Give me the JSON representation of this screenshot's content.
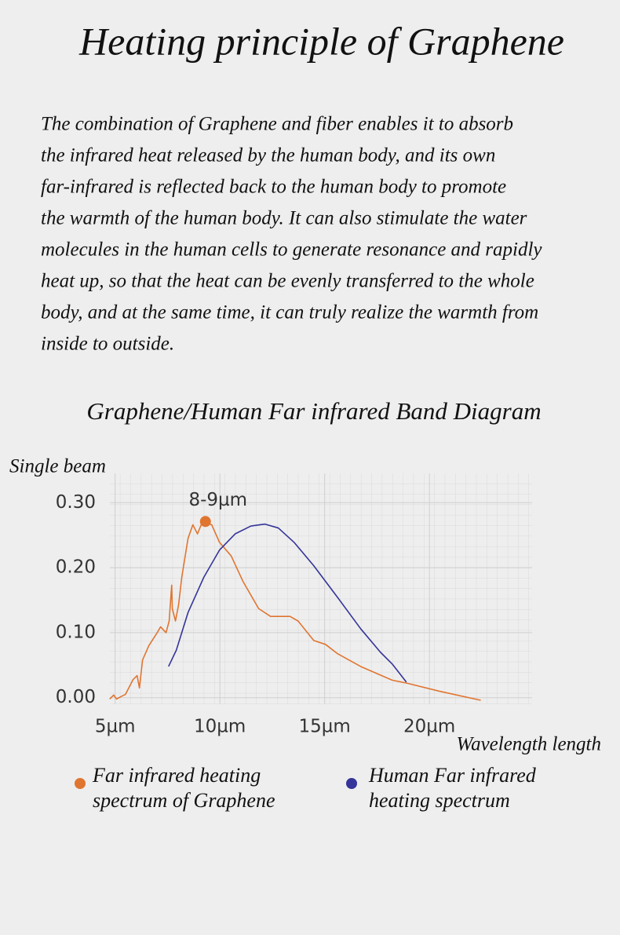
{
  "header": {
    "title": "Heating principle of Graphene"
  },
  "paragraph": {
    "lines": [
      "The combination of Graphene and fiber enables it to absorb",
      "the infrared heat released by the human body, and its own",
      "far-infrared is reflected back to the human body to promote",
      "the warmth of the human body. It can also stimulate the water",
      "molecules in the human cells to generate resonance and rapidly",
      "heat up, so that the heat can be evenly transferred to the whole",
      "body, and at the same time, it can truly realize the warmth from",
      "inside to outside."
    ]
  },
  "chart_data": {
    "type": "line",
    "title": "Graphene/Human Far infrared Band Diagram",
    "y_label": "Single beam",
    "x_label": "Wavelength length",
    "xlim": [
      4.75,
      24.9
    ],
    "ylim": [
      -0.01,
      0.345
    ],
    "xticks": [
      {
        "value": 5,
        "label": "5µm"
      },
      {
        "value": 10,
        "label": "10µm"
      },
      {
        "value": 15,
        "label": "15µm"
      },
      {
        "value": 20,
        "label": "20µm"
      }
    ],
    "yticks": [
      {
        "value": 0,
        "label": "0.00"
      },
      {
        "value": 0.1,
        "label": "0.10"
      },
      {
        "value": 0.2,
        "label": "0.20"
      },
      {
        "value": 0.3,
        "label": "0.30"
      }
    ],
    "annotation": {
      "text": "8-9µm",
      "x": 9.31,
      "y": 0.271,
      "color": "#e07530"
    },
    "series": [
      {
        "name": "Far infrared heating spectrum of Graphene",
        "color": "#e07530",
        "x": [
          4.74,
          4.93,
          5.07,
          5.3,
          5.49,
          5.86,
          6.05,
          6.16,
          6.31,
          6.61,
          6.99,
          7.17,
          7.43,
          7.58,
          7.7,
          7.73,
          7.88,
          8.03,
          8.18,
          8.33,
          8.48,
          8.71,
          8.93,
          9.16,
          9.61,
          9.98,
          10.54,
          11.1,
          11.85,
          12.42,
          13.35,
          13.73,
          14.48,
          15.04,
          15.6,
          16.72,
          18.22,
          18.97,
          20.47,
          22.45
        ],
        "values": [
          -0.002,
          0.004,
          -0.002,
          0.002,
          0.005,
          0.028,
          0.034,
          0.015,
          0.058,
          0.08,
          0.099,
          0.109,
          0.1,
          0.118,
          0.173,
          0.137,
          0.118,
          0.143,
          0.185,
          0.215,
          0.245,
          0.266,
          0.252,
          0.27,
          0.266,
          0.239,
          0.218,
          0.179,
          0.137,
          0.125,
          0.125,
          0.118,
          0.088,
          0.082,
          0.068,
          0.048,
          0.027,
          0.022,
          0.01,
          -0.004
        ]
      },
      {
        "name": "Human Far infrared heating spectrum",
        "color": "#34349a",
        "x": [
          7.55,
          7.92,
          8.48,
          9.23,
          9.98,
          10.73,
          11.48,
          12.15,
          12.79,
          13.54,
          14.48,
          15.6,
          16.72,
          17.66,
          18.22,
          18.9
        ],
        "values": [
          0.048,
          0.073,
          0.131,
          0.185,
          0.227,
          0.252,
          0.264,
          0.267,
          0.261,
          0.239,
          0.203,
          0.155,
          0.106,
          0.07,
          0.052,
          0.024
        ]
      }
    ]
  }
}
